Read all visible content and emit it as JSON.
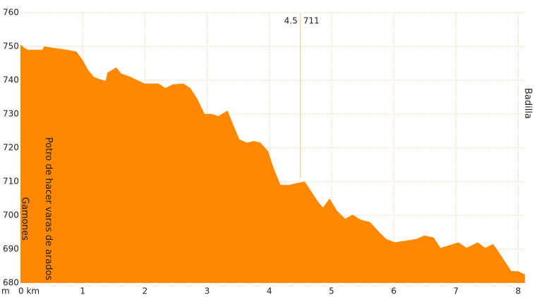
{
  "chart_data": {
    "type": "area",
    "color": "#ff8800",
    "y_label": "m",
    "x": [
      0,
      0.05,
      0.12,
      0.35,
      0.38,
      0.75,
      0.9,
      1.0,
      1.09,
      1.18,
      1.26,
      1.37,
      1.4,
      1.54,
      1.62,
      1.77,
      1.88,
      2.0,
      2.22,
      2.33,
      2.45,
      2.62,
      2.73,
      2.84,
      2.96,
      3.07,
      3.18,
      3.33,
      3.41,
      3.52,
      3.64,
      3.75,
      3.86,
      3.98,
      4.07,
      4.18,
      4.32,
      4.43,
      4.57,
      4.66,
      4.77,
      4.86,
      4.97,
      5.09,
      5.22,
      5.34,
      5.47,
      5.62,
      5.77,
      5.88,
      6.02,
      6.19,
      6.36,
      6.49,
      6.64,
      6.75,
      6.92,
      7.04,
      7.17,
      7.35,
      7.47,
      7.6,
      7.74,
      7.89,
      8.0,
      8.11
    ],
    "values": [
      750.6,
      749.8,
      749,
      749,
      750,
      749,
      748.5,
      746,
      743,
      741,
      740.4,
      739.8,
      742.3,
      743.8,
      742,
      741,
      740,
      739,
      739,
      737.7,
      738.8,
      739,
      737.7,
      734.6,
      730,
      730,
      729.4,
      731,
      727.3,
      722.5,
      721.5,
      722,
      721.5,
      719,
      714,
      709,
      709,
      709.5,
      710,
      707.5,
      704.4,
      702.3,
      705,
      701.3,
      699,
      700.2,
      698.7,
      698,
      695,
      693,
      692,
      692.5,
      693,
      694,
      693.5,
      690.4,
      691.3,
      692,
      690.4,
      692,
      690.4,
      691.5,
      687.7,
      683.5,
      683.5,
      682.5
    ],
    "xlim": [
      0,
      8.13
    ],
    "ylim": [
      680,
      760
    ],
    "xticks": [
      {
        "value": 0,
        "label": "0 km"
      },
      1,
      2,
      3,
      4,
      5,
      6,
      7,
      8
    ],
    "yticks": [
      680,
      690,
      700,
      710,
      720,
      730,
      740,
      750,
      760
    ],
    "grid": true,
    "waypoints": [
      {
        "name": "Gamones",
        "x": 0.07
      },
      {
        "name": "Potro de hacer varas de arados",
        "x": 0.45
      },
      {
        "name": "Badilla",
        "x": 8.13
      }
    ],
    "cursor": {
      "x": 4.5,
      "elevation": 711
    }
  }
}
